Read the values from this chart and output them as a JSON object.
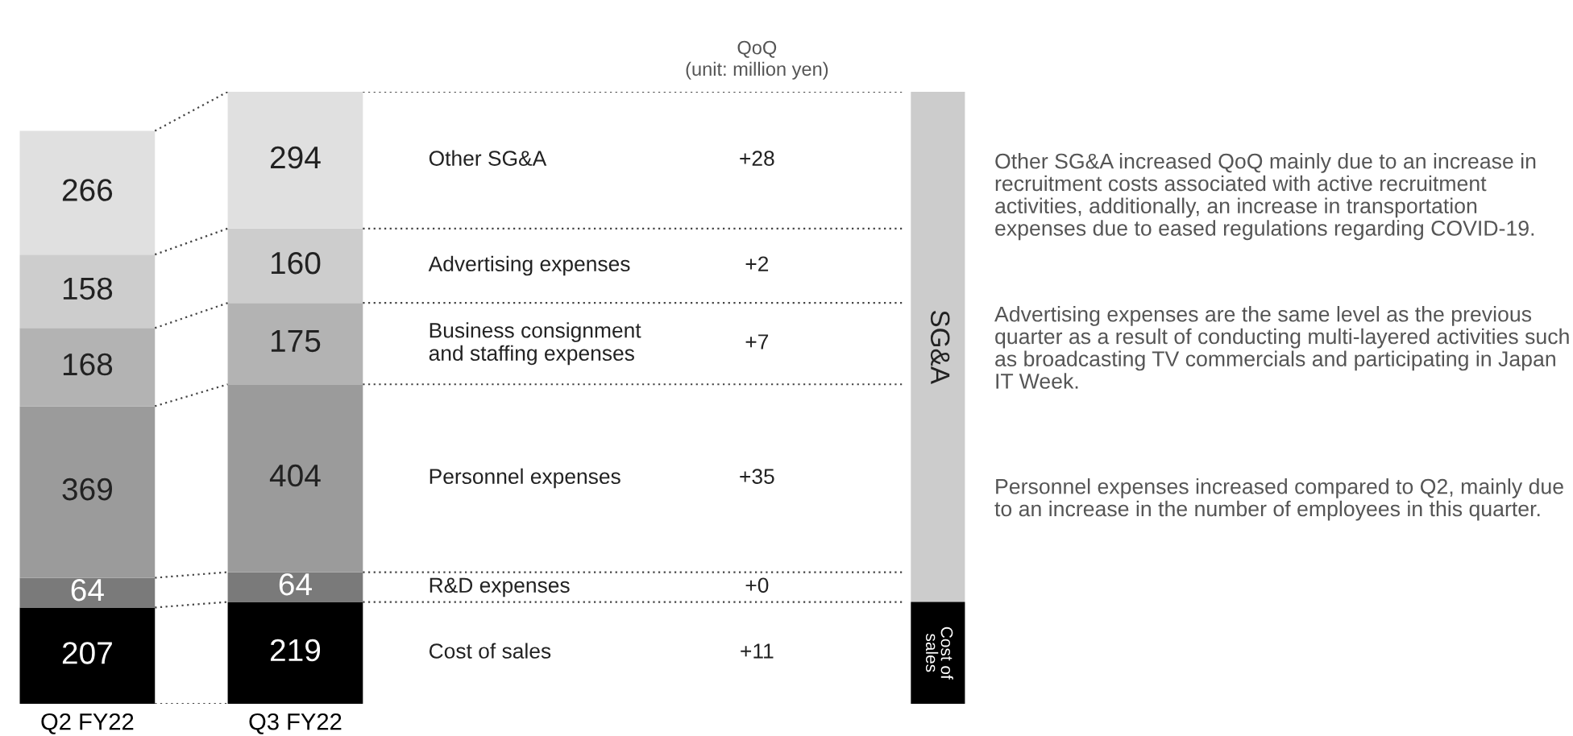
{
  "chart_data": {
    "type": "bar",
    "stacked": true,
    "data_labels": true,
    "legend": false,
    "grid": false,
    "categories": [
      "Q2 FY22",
      "Q3 FY22"
    ],
    "series": [
      {
        "name": "Cost of sales",
        "color": "#000000",
        "values": [
          207,
          219
        ]
      },
      {
        "name": "R&D expenses",
        "color": "#7a7a7a",
        "values": [
          64,
          64
        ]
      },
      {
        "name": "Personnel expenses",
        "color": "#9b9b9b",
        "values": [
          369,
          404
        ]
      },
      {
        "name": "Business consignment\nand staffing expenses",
        "color": "#b3b3b3",
        "values": [
          168,
          175
        ]
      },
      {
        "name": "Advertising expenses",
        "color": "#cdcdcd",
        "values": [
          158,
          160
        ]
      },
      {
        "name": "Other SG&A",
        "color": "#e0e0e0",
        "values": [
          266,
          294
        ]
      }
    ],
    "annotations": [
      "QoQ",
      "(unit: million yen)",
      "+11",
      "+0",
      "+35",
      "+7",
      "+2",
      "+28",
      "SG&A",
      "Cost of\nsales",
      "Other SG&A increased QoQ mainly due to an increase in recruitment costs associated with active recruitment activities, additionally, an increase in transportation expenses due to eased regulations regarding COVID-19.",
      "Advertising expenses are the same level as the previous quarter as a result of conducting multi-layered activities such as broadcasting TV commercials and participating in Japan IT Week.",
      "Personnel expenses increased compared to Q2, mainly due to an increase in the number of employees in this quarter."
    ]
  }
}
